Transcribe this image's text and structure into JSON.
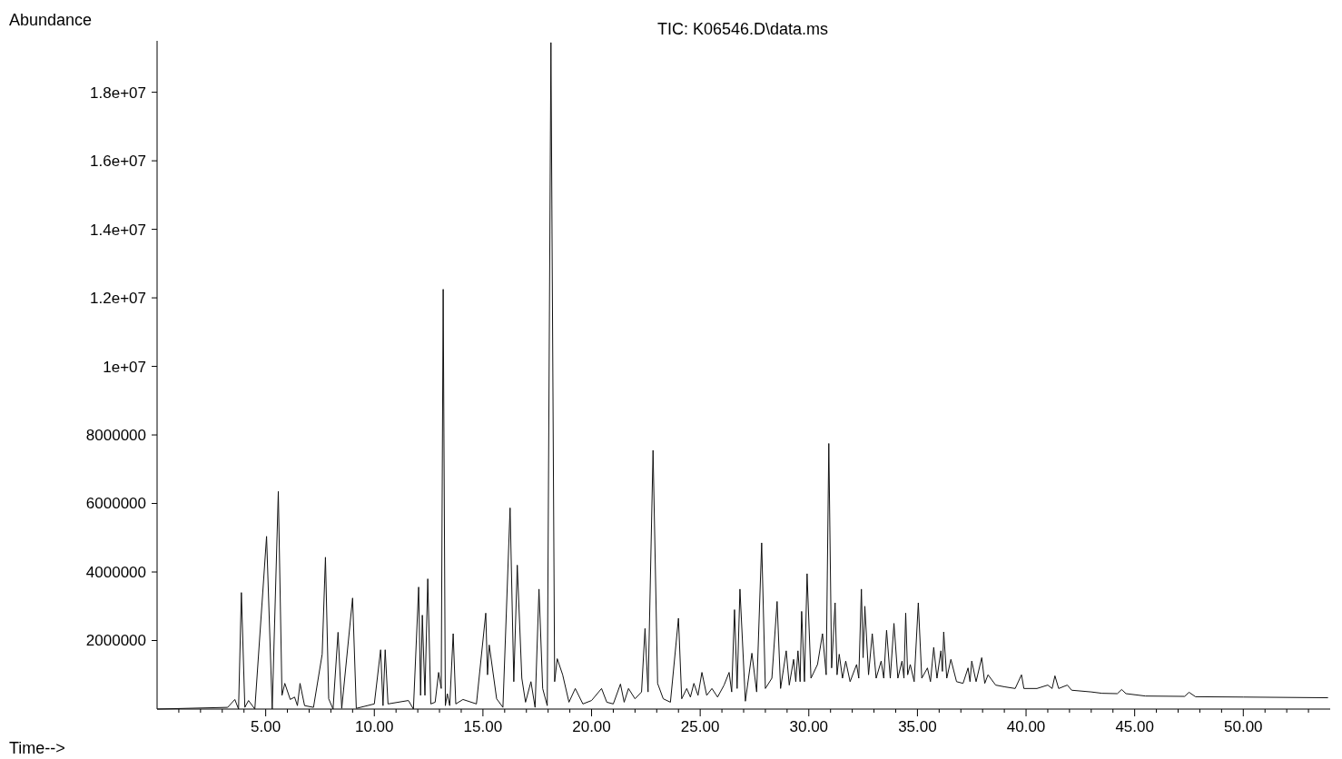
{
  "chart_data": {
    "type": "line",
    "title": "TIC: K06546.D\\data.ms",
    "xlabel": "Time-->",
    "ylabel": "Abundance",
    "color": "#111111",
    "marker": "none",
    "line_style": "solid",
    "grid": false,
    "xlim": [
      0,
      54
    ],
    "ylim": [
      0,
      19500000
    ],
    "xticks": [
      {
        "value": 1,
        "label": null
      },
      {
        "value": 2,
        "label": null
      },
      {
        "value": 3,
        "label": null
      },
      {
        "value": 4,
        "label": null
      },
      {
        "value": 5,
        "label": "5.00"
      },
      {
        "value": 6,
        "label": null
      },
      {
        "value": 7,
        "label": null
      },
      {
        "value": 8,
        "label": null
      },
      {
        "value": 9,
        "label": null
      },
      {
        "value": 10,
        "label": "10.00"
      },
      {
        "value": 11,
        "label": null
      },
      {
        "value": 12,
        "label": null
      },
      {
        "value": 13,
        "label": null
      },
      {
        "value": 14,
        "label": null
      },
      {
        "value": 15,
        "label": "15.00"
      },
      {
        "value": 16,
        "label": null
      },
      {
        "value": 17,
        "label": null
      },
      {
        "value": 18,
        "label": null
      },
      {
        "value": 19,
        "label": null
      },
      {
        "value": 20,
        "label": "20.00"
      },
      {
        "value": 21,
        "label": null
      },
      {
        "value": 22,
        "label": null
      },
      {
        "value": 23,
        "label": null
      },
      {
        "value": 24,
        "label": null
      },
      {
        "value": 25,
        "label": "25.00"
      },
      {
        "value": 26,
        "label": null
      },
      {
        "value": 27,
        "label": null
      },
      {
        "value": 28,
        "label": null
      },
      {
        "value": 29,
        "label": null
      },
      {
        "value": 30,
        "label": "30.00"
      },
      {
        "value": 31,
        "label": null
      },
      {
        "value": 32,
        "label": null
      },
      {
        "value": 33,
        "label": null
      },
      {
        "value": 34,
        "label": null
      },
      {
        "value": 35,
        "label": "35.00"
      },
      {
        "value": 36,
        "label": null
      },
      {
        "value": 37,
        "label": null
      },
      {
        "value": 38,
        "label": null
      },
      {
        "value": 39,
        "label": null
      },
      {
        "value": 40,
        "label": "40.00"
      },
      {
        "value": 41,
        "label": null
      },
      {
        "value": 42,
        "label": null
      },
      {
        "value": 43,
        "label": null
      },
      {
        "value": 44,
        "label": null
      },
      {
        "value": 45,
        "label": "45.00"
      },
      {
        "value": 46,
        "label": null
      },
      {
        "value": 47,
        "label": null
      },
      {
        "value": 48,
        "label": null
      },
      {
        "value": 49,
        "label": null
      },
      {
        "value": 50,
        "label": "50.00"
      },
      {
        "value": 51,
        "label": null
      },
      {
        "value": 52,
        "label": null
      },
      {
        "value": 53,
        "label": null
      }
    ],
    "yticks": [
      2000000,
      4000000,
      6000000,
      8000000,
      {
        "value": 10000000,
        "label": "1e+07"
      },
      {
        "value": 12000000,
        "label": "1.2e+07"
      },
      {
        "value": 14000000,
        "label": "1.4e+07"
      },
      {
        "value": 16000000,
        "label": "1.6e+07"
      },
      {
        "value": 18000000,
        "label": "1.8e+07"
      }
    ],
    "x": [
      0,
      3.25,
      3.58,
      3.75,
      3.88,
      4.04,
      4.21,
      4.5,
      5.04,
      5.3,
      5.58,
      5.75,
      5.88,
      6.13,
      6.33,
      6.46,
      6.58,
      6.79,
      7.2,
      7.6,
      7.75,
      7.9,
      8.1,
      8.33,
      8.5,
      9.0,
      9.17,
      10.0,
      10.29,
      10.4,
      10.5,
      10.63,
      11.57,
      11.8,
      12.04,
      12.13,
      12.21,
      12.33,
      12.46,
      12.6,
      12.8,
      12.96,
      13.08,
      13.17,
      13.27,
      13.36,
      13.47,
      13.63,
      13.75,
      14.08,
      14.7,
      15.13,
      15.21,
      15.29,
      15.63,
      15.92,
      16.25,
      16.42,
      16.58,
      16.79,
      16.96,
      17.21,
      17.4,
      17.58,
      17.75,
      17.96,
      18.13,
      18.3,
      18.42,
      18.67,
      18.96,
      19.25,
      19.6,
      20.0,
      20.46,
      20.7,
      21.0,
      21.33,
      21.5,
      21.7,
      22.0,
      22.3,
      22.46,
      22.6,
      22.83,
      23.04,
      23.3,
      23.63,
      24.0,
      24.15,
      24.38,
      24.55,
      24.71,
      24.9,
      25.08,
      25.3,
      25.54,
      25.8,
      26.1,
      26.33,
      26.45,
      26.58,
      26.7,
      26.83,
      27.08,
      27.38,
      27.6,
      27.83,
      28.0,
      28.3,
      28.54,
      28.7,
      28.96,
      29.1,
      29.3,
      29.4,
      29.5,
      29.6,
      29.67,
      29.8,
      29.92,
      30.1,
      30.4,
      30.63,
      30.8,
      30.92,
      31.05,
      31.21,
      31.3,
      31.4,
      31.55,
      31.7,
      31.9,
      32.2,
      32.3,
      32.42,
      32.5,
      32.58,
      32.75,
      32.92,
      33.1,
      33.33,
      33.45,
      33.58,
      33.75,
      33.92,
      34.1,
      34.29,
      34.38,
      34.46,
      34.55,
      34.67,
      34.85,
      35.04,
      35.2,
      35.46,
      35.6,
      35.75,
      35.9,
      36.08,
      36.15,
      36.21,
      36.35,
      36.54,
      36.8,
      37.1,
      37.33,
      37.42,
      37.5,
      37.7,
      37.96,
      38.1,
      38.25,
      38.6,
      39.0,
      39.5,
      39.79,
      39.9,
      40.5,
      41.0,
      41.2,
      41.33,
      41.5,
      41.9,
      42.1,
      43.0,
      43.5,
      44.2,
      44.4,
      44.6,
      45.5,
      47.3,
      47.5,
      47.8,
      50.0,
      53.9
    ],
    "values": [
      0,
      50000.0,
      280000.0,
      0,
      3400000.0,
      50000.0,
      250000.0,
      0,
      5040000.0,
      0,
      6350000.0,
      400000.0,
      750000.0,
      280000.0,
      350000.0,
      100000.0,
      750000.0,
      100000.0,
      50000.0,
      1600000.0,
      4430000.0,
      300000.0,
      0,
      2240000.0,
      20000.0,
      3240000.0,
      20000.0,
      150000.0,
      1730000.0,
      100000.0,
      1730000.0,
      150000.0,
      250000.0,
      0,
      3560000.0,
      400000.0,
      2740000.0,
      400000.0,
      3800000.0,
      150000.0,
      200000.0,
      1070000.0,
      600000.0,
      12250000.0,
      100000.0,
      450000.0,
      100000.0,
      2200000.0,
      150000.0,
      280000.0,
      150000.0,
      2800000.0,
      1000000.0,
      1870000.0,
      300000.0,
      50000.0,
      5870000.0,
      800000.0,
      4200000.0,
      900000.0,
      200000.0,
      800000.0,
      50000.0,
      3500000.0,
      600000.0,
      100000.0,
      19450000.0,
      800000.0,
      1470000.0,
      1000000.0,
      200000.0,
      600000.0,
      150000.0,
      250000.0,
      600000.0,
      200000.0,
      150000.0,
      730000.0,
      200000.0,
      600000.0,
      300000.0,
      500000.0,
      2350000.0,
      500000.0,
      7550000.0,
      750000.0,
      300000.0,
      200000.0,
      2650000.0,
      300000.0,
      600000.0,
      350000.0,
      750000.0,
      400000.0,
      1070000.0,
      400000.0,
      600000.0,
      350000.0,
      700000.0,
      1070000.0,
      500000.0,
      2900000.0,
      600000.0,
      3500000.0,
      230000.0,
      1630000.0,
      500000.0,
      4850000.0,
      600000.0,
      900000.0,
      3140000.0,
      600000.0,
      1700000.0,
      700000.0,
      1450000.0,
      800000.0,
      1700000.0,
      800000.0,
      2850000.0,
      800000.0,
      3950000.0,
      900000.0,
      1300000.0,
      2200000.0,
      1000000.0,
      7750000.0,
      1200000.0,
      3100000.0,
      1000000.0,
      1600000.0,
      900000.0,
      1400000.0,
      800000.0,
      1300000.0,
      900000.0,
      3500000.0,
      1500000.0,
      3000000.0,
      1000000.0,
      2200000.0,
      900000.0,
      1400000.0,
      900000.0,
      2300000.0,
      900000.0,
      2500000.0,
      900000.0,
      1400000.0,
      900000.0,
      2800000.0,
      1000000.0,
      1300000.0,
      800000.0,
      3100000.0,
      900000.0,
      1200000.0,
      800000.0,
      1800000.0,
      900000.0,
      1700000.0,
      1100000.0,
      2250000.0,
      900000.0,
      1450000.0,
      800000.0,
      750000.0,
      1200000.0,
      800000.0,
      1400000.0,
      800000.0,
      1500000.0,
      750000.0,
      1000000.0,
      700000.0,
      650000.0,
      600000.0,
      1000000.0,
      600000.0,
      600000.0,
      700000.0,
      600000.0,
      970000.0,
      600000.0,
      700000.0,
      550000.0,
      500000.0,
      460000.0,
      450000.0,
      570000.0,
      450000.0,
      380000.0,
      370000.0,
      490000.0,
      360000.0,
      350000.0,
      330000.0
    ]
  }
}
